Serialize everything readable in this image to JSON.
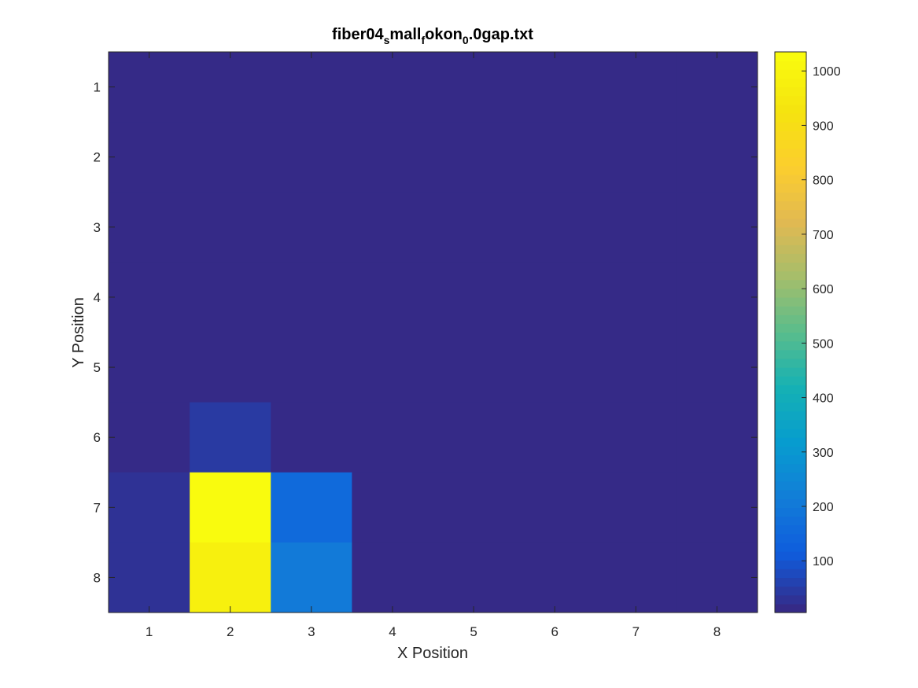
{
  "chart_data": {
    "type": "heatmap",
    "title": {
      "parts": [
        {
          "text": "fiber04",
          "sub": false
        },
        {
          "text": "s",
          "sub": true
        },
        {
          "text": "mall",
          "sub": false
        },
        {
          "text": "f",
          "sub": true
        },
        {
          "text": "okon",
          "sub": false
        },
        {
          "text": "0",
          "sub": true
        },
        {
          "text": ".0gap.txt",
          "sub": false
        }
      ]
    },
    "xlabel": "X Position",
    "ylabel": "Y Position",
    "x_ticks": [
      1,
      2,
      3,
      4,
      5,
      6,
      7,
      8
    ],
    "y_ticks": [
      1,
      2,
      3,
      4,
      5,
      6,
      7,
      8
    ],
    "xlim": [
      0.5,
      8.5
    ],
    "ylim": [
      0.5,
      8.5
    ],
    "y_direction": "reverse",
    "values": [
      [
        8,
        8,
        8,
        8,
        8,
        8,
        8,
        8
      ],
      [
        8,
        8,
        8,
        8,
        8,
        8,
        8,
        8
      ],
      [
        8,
        8,
        8,
        8,
        8,
        8,
        8,
        8
      ],
      [
        8,
        8,
        8,
        8,
        8,
        8,
        8,
        8
      ],
      [
        8,
        8,
        8,
        8,
        8,
        8,
        8,
        8
      ],
      [
        8,
        30,
        8,
        8,
        8,
        8,
        8,
        8
      ],
      [
        25,
        1030,
        150,
        8,
        8,
        8,
        8,
        8
      ],
      [
        25,
        980,
        200,
        8,
        8,
        8,
        8,
        8
      ]
    ],
    "colorbar": {
      "min": 5,
      "max": 1035,
      "ticks": [
        100,
        200,
        300,
        400,
        500,
        600,
        700,
        800,
        900,
        1000
      ],
      "colormap": "parula",
      "levels": 64,
      "location": "right"
    },
    "grid": false
  }
}
